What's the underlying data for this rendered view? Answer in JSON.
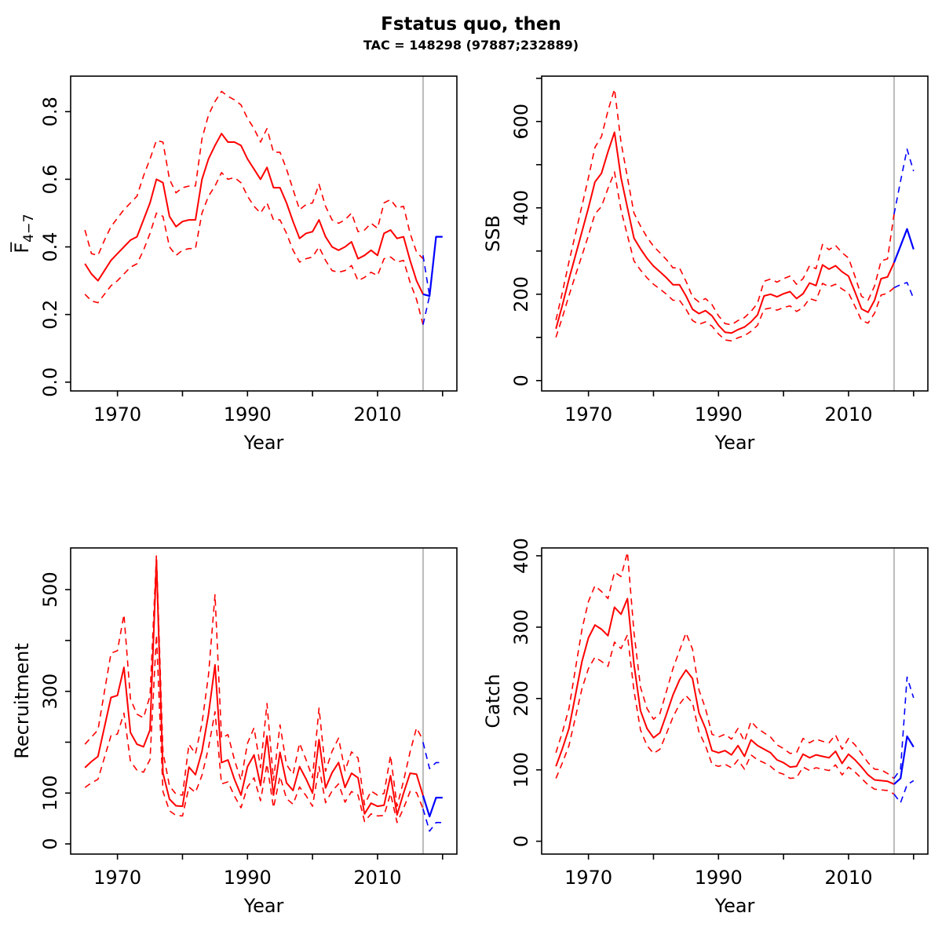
{
  "main": {
    "title": "Fstatus quo, then",
    "subtitle": "TAC = 148298 (97887;232889)"
  },
  "colors": {
    "history_median": "#ff0000",
    "history_ci": "#ff0000",
    "forecast_median": "#0000ff",
    "forecast_ci": "#0000ff",
    "divider_line": "#bebebe",
    "frame": "#000000"
  },
  "axis": {
    "x_label": "Year",
    "x_ticks": [
      1970,
      1980,
      1990,
      2000,
      2010,
      2020
    ],
    "x_labeled": [
      1970,
      1990,
      2010
    ],
    "x_domain": [
      1962.8,
      2022.2
    ],
    "divider_year": 2017
  },
  "chart_data": [
    {
      "id": "f",
      "type": "line",
      "title": "",
      "xlabel": "Year",
      "ylabel": "F4-7",
      "ylabel_parts": {
        "base": "F̅",
        "sub": "4−7"
      },
      "y_ticks": [
        0,
        0.2,
        0.4,
        0.6,
        0.8
      ],
      "y_tick_labels": [
        "0.0",
        "0.2",
        "0.4",
        "0.6",
        "0.8"
      ],
      "y_labeled": [
        0,
        0.2,
        0.4,
        0.6,
        0.8
      ],
      "y_domain": [
        -0.026,
        0.905
      ],
      "legend": "none",
      "history": {
        "start_year": 1965,
        "median": [
          0.35,
          0.32,
          0.3,
          0.33,
          0.36,
          0.38,
          0.4,
          0.42,
          0.43,
          0.48,
          0.53,
          0.6,
          0.59,
          0.49,
          0.46,
          0.475,
          0.48,
          0.48,
          0.6,
          0.66,
          0.7,
          0.735,
          0.71,
          0.71,
          0.7,
          0.66,
          0.63,
          0.6,
          0.635,
          0.575,
          0.575,
          0.53,
          0.475,
          0.425,
          0.44,
          0.445,
          0.48,
          0.43,
          0.4,
          0.39,
          0.4,
          0.415,
          0.365,
          0.375,
          0.39,
          0.375,
          0.44,
          0.45,
          0.425,
          0.43,
          0.36,
          0.3,
          0.26
        ],
        "hi": [
          0.45,
          0.38,
          0.375,
          0.42,
          0.46,
          0.485,
          0.51,
          0.53,
          0.55,
          0.61,
          0.66,
          0.715,
          0.71,
          0.6,
          0.56,
          0.575,
          0.58,
          0.58,
          0.72,
          0.79,
          0.83,
          0.86,
          0.845,
          0.835,
          0.82,
          0.78,
          0.75,
          0.71,
          0.75,
          0.68,
          0.68,
          0.63,
          0.57,
          0.51,
          0.525,
          0.53,
          0.585,
          0.52,
          0.48,
          0.47,
          0.48,
          0.5,
          0.445,
          0.45,
          0.47,
          0.455,
          0.53,
          0.54,
          0.515,
          0.52,
          0.44,
          0.385,
          0.365
        ],
        "lo": [
          0.26,
          0.24,
          0.235,
          0.26,
          0.285,
          0.3,
          0.32,
          0.34,
          0.35,
          0.39,
          0.44,
          0.5,
          0.49,
          0.4,
          0.375,
          0.39,
          0.395,
          0.395,
          0.5,
          0.55,
          0.58,
          0.62,
          0.6,
          0.605,
          0.59,
          0.55,
          0.52,
          0.5,
          0.53,
          0.48,
          0.48,
          0.44,
          0.39,
          0.355,
          0.365,
          0.37,
          0.4,
          0.36,
          0.33,
          0.325,
          0.33,
          0.345,
          0.3,
          0.31,
          0.325,
          0.315,
          0.365,
          0.37,
          0.355,
          0.36,
          0.295,
          0.245,
          0.17
        ]
      },
      "forecast": {
        "years": [
          2017,
          2018,
          2019,
          2020
        ],
        "median": [
          0.26,
          0.255,
          0.43,
          0.43
        ],
        "ci_years": [
          2017,
          2018
        ],
        "hi": [
          0.375,
          0.255
        ],
        "lo": [
          0.17,
          0.255
        ]
      }
    },
    {
      "id": "ssb",
      "type": "line",
      "title": "",
      "xlabel": "Year",
      "ylabel": "SSB",
      "y_ticks": [
        0,
        100,
        200,
        300,
        400,
        500,
        600,
        700
      ],
      "y_tick_labels": [
        "0",
        "100",
        "200",
        "300",
        "400",
        "500",
        "600",
        "700"
      ],
      "y_labeled": [
        0,
        200,
        400,
        600
      ],
      "y_domain": [
        -24,
        705
      ],
      "legend": "none",
      "history": {
        "start_year": 1965,
        "median": [
          120,
          175,
          235,
          290,
          345,
          400,
          460,
          480,
          530,
          575,
          470,
          400,
          330,
          305,
          283,
          265,
          252,
          238,
          222,
          222,
          196,
          165,
          155,
          162,
          150,
          128,
          112,
          110,
          118,
          124,
          136,
          152,
          196,
          200,
          194,
          201,
          206,
          190,
          201,
          226,
          220,
          268,
          258,
          266,
          252,
          242,
          205,
          166,
          158,
          186,
          236,
          240,
          273
        ],
        "hi": [
          140,
          205,
          275,
          340,
          405,
          470,
          540,
          565,
          625,
          675,
          552,
          470,
          388,
          358,
          332,
          311,
          296,
          280,
          261,
          261,
          230,
          194,
          182,
          190,
          176,
          150,
          132,
          129,
          139,
          146,
          160,
          179,
          230,
          235,
          228,
          236,
          242,
          223,
          236,
          266,
          259,
          315,
          303,
          313,
          296,
          284,
          241,
          195,
          186,
          219,
          277,
          282,
          385
        ],
        "lo": [
          100,
          147,
          197,
          244,
          290,
          336,
          386,
          403,
          445,
          483,
          395,
          336,
          277,
          256,
          238,
          223,
          212,
          200,
          186,
          186,
          165,
          139,
          130,
          136,
          126,
          108,
          94,
          92,
          99,
          104,
          114,
          128,
          165,
          168,
          163,
          169,
          173,
          160,
          169,
          190,
          185,
          225,
          217,
          223,
          212,
          203,
          172,
          139,
          133,
          156,
          198,
          202,
          215
        ]
      },
      "forecast": {
        "years": [
          2017,
          2018,
          2019,
          2020
        ],
        "median": [
          273,
          312,
          351,
          304
        ],
        "ci_years": [
          2017,
          2018,
          2019,
          2020
        ],
        "hi": [
          385,
          462,
          536,
          485
        ],
        "lo": [
          215,
          222,
          227,
          190
        ]
      }
    },
    {
      "id": "recruitment",
      "type": "line",
      "title": "",
      "xlabel": "Year",
      "ylabel": "Recruitment",
      "y_ticks": [
        0,
        100,
        200,
        300,
        400,
        500
      ],
      "y_tick_labels": [
        "0",
        "100",
        "200",
        "300",
        "400",
        "500"
      ],
      "y_labeled": [
        0,
        100,
        300,
        500
      ],
      "y_domain": [
        -20,
        582
      ],
      "legend": "none",
      "history": {
        "start_year": 1965,
        "median": [
          150,
          162,
          172,
          230,
          288,
          292,
          347,
          219,
          196,
          191,
          224,
          556,
          139,
          88,
          75,
          74,
          151,
          136,
          182,
          255,
          352,
          160,
          165,
          127,
          96,
          152,
          175,
          115,
          212,
          96,
          180,
          120,
          105,
          152,
          128,
          100,
          205,
          110,
          140,
          160,
          111,
          139,
          130,
          59,
          80,
          74,
          76,
          134,
          57,
          100,
          139,
          137,
          95
        ],
        "hi": [
          196,
          210,
          224,
          300,
          375,
          380,
          451,
          285,
          255,
          248,
          291,
          568,
          181,
          114,
          98,
          96,
          196,
          177,
          237,
          332,
          490,
          208,
          215,
          165,
          125,
          198,
          228,
          150,
          276,
          125,
          234,
          156,
          137,
          198,
          166,
          130,
          267,
          143,
          182,
          208,
          144,
          181,
          169,
          77,
          104,
          96,
          99,
          174,
          74,
          124,
          181,
          228,
          204
        ],
        "lo": [
          111,
          120,
          127,
          170,
          213,
          216,
          257,
          162,
          145,
          141,
          166,
          411,
          103,
          65,
          56,
          55,
          112,
          101,
          135,
          189,
          260,
          118,
          122,
          94,
          71,
          112,
          130,
          85,
          157,
          71,
          133,
          89,
          78,
          112,
          95,
          74,
          152,
          81,
          104,
          118,
          82,
          103,
          96,
          44,
          59,
          55,
          56,
          99,
          42,
          70,
          103,
          101,
          69
        ]
      },
      "forecast": {
        "years": [
          2017,
          2018,
          2019,
          2020
        ],
        "median": [
          95,
          54,
          91,
          91
        ],
        "ci_years": [
          2017,
          2018,
          2019,
          2020
        ],
        "hi": [
          200,
          148,
          160,
          160
        ],
        "lo": [
          69,
          25,
          42,
          42
        ]
      }
    },
    {
      "id": "catch",
      "type": "line",
      "title": "",
      "xlabel": "Year",
      "ylabel": "Catch",
      "y_ticks": [
        0,
        100,
        200,
        300,
        400
      ],
      "y_tick_labels": [
        "0",
        "100",
        "200",
        "300",
        "400"
      ],
      "y_labeled": [
        0,
        100,
        200,
        300,
        400
      ],
      "y_domain": [
        -18,
        411
      ],
      "legend": "none",
      "history": {
        "start_year": 1965,
        "median": [
          105,
          130,
          158,
          205,
          252,
          285,
          303,
          297,
          288,
          328,
          318,
          340,
          248,
          183,
          158,
          145,
          152,
          178,
          205,
          226,
          240,
          228,
          180,
          158,
          127,
          124,
          127,
          121,
          134,
          119,
          142,
          134,
          129,
          124,
          114,
          110,
          104,
          105,
          122,
          117,
          121,
          119,
          117,
          126,
          109,
          122,
          114,
          104,
          93,
          86,
          85,
          84,
          80
        ],
        "hi": [
          124,
          153,
          186,
          242,
          297,
          336,
          358,
          350,
          340,
          377,
          371,
          405,
          293,
          216,
          186,
          171,
          179,
          210,
          242,
          267,
          292,
          269,
          212,
          186,
          150,
          146,
          150,
          143,
          158,
          140,
          168,
          158,
          152,
          146,
          135,
          130,
          123,
          124,
          144,
          138,
          143,
          140,
          138,
          149,
          129,
          144,
          135,
          123,
          110,
          101,
          100,
          95,
          88
        ],
        "lo": [
          88,
          110,
          134,
          174,
          214,
          242,
          258,
          252,
          245,
          279,
          270,
          289,
          211,
          156,
          134,
          123,
          129,
          151,
          174,
          192,
          204,
          194,
          153,
          134,
          108,
          105,
          108,
          103,
          114,
          101,
          121,
          114,
          110,
          105,
          97,
          94,
          88,
          89,
          104,
          99,
          103,
          101,
          99,
          107,
          93,
          104,
          97,
          88,
          79,
          73,
          72,
          71,
          66
        ]
      },
      "forecast": {
        "years": [
          2017,
          2018,
          2019,
          2020
        ],
        "median": [
          80,
          88,
          147,
          132
        ],
        "ci_years": [
          2017,
          2018,
          2019,
          2020
        ],
        "hi": [
          88,
          101,
          230,
          201
        ],
        "lo": [
          66,
          54,
          79,
          85
        ]
      }
    }
  ]
}
